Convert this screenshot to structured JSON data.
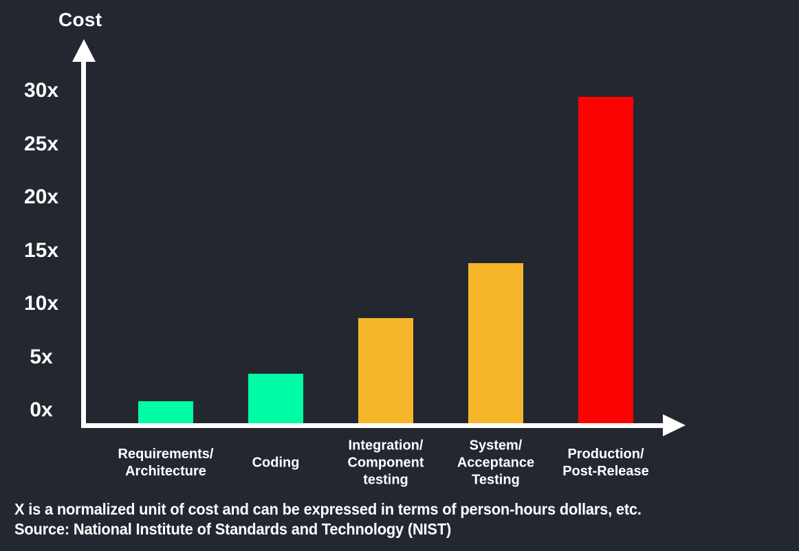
{
  "colors": {
    "background": "#232830",
    "axis": "#ffffff",
    "text": "#ffffff",
    "bar_green": "#00FCA4",
    "bar_orange": "#F5B62B",
    "bar_red": "#FC0303"
  },
  "footer": {
    "line1": "X is a normalized unit of cost and can be expressed in terms of person-hours dollars, etc.",
    "line2": "Source: National Institute of Standards and Technology (NIST)"
  },
  "chart_data": {
    "type": "bar",
    "title": "Cost",
    "ylabel": "Cost",
    "xlabel": "",
    "ylim": [
      0,
      32
    ],
    "grid": false,
    "legend": false,
    "yticks": [
      {
        "value": 30,
        "label": "30x"
      },
      {
        "value": 25,
        "label": "25x"
      },
      {
        "value": 20,
        "label": "20x"
      },
      {
        "value": 15,
        "label": "15x"
      },
      {
        "value": 10,
        "label": "10x"
      },
      {
        "value": 5,
        "label": "5x"
      },
      {
        "value": 0,
        "label": "0x"
      }
    ],
    "categories": [
      "Requirements/\nArchitecture",
      "Coding",
      "Integration/\nComponent\ntesting",
      "System/\nAcceptance\nTesting",
      "Production/\nPost-Release"
    ],
    "values": [
      2,
      4.5,
      9.5,
      14.5,
      29.5
    ],
    "bar_colors": [
      "#00FCA4",
      "#00FCA4",
      "#F5B62B",
      "#F5B62B",
      "#FC0303"
    ]
  }
}
